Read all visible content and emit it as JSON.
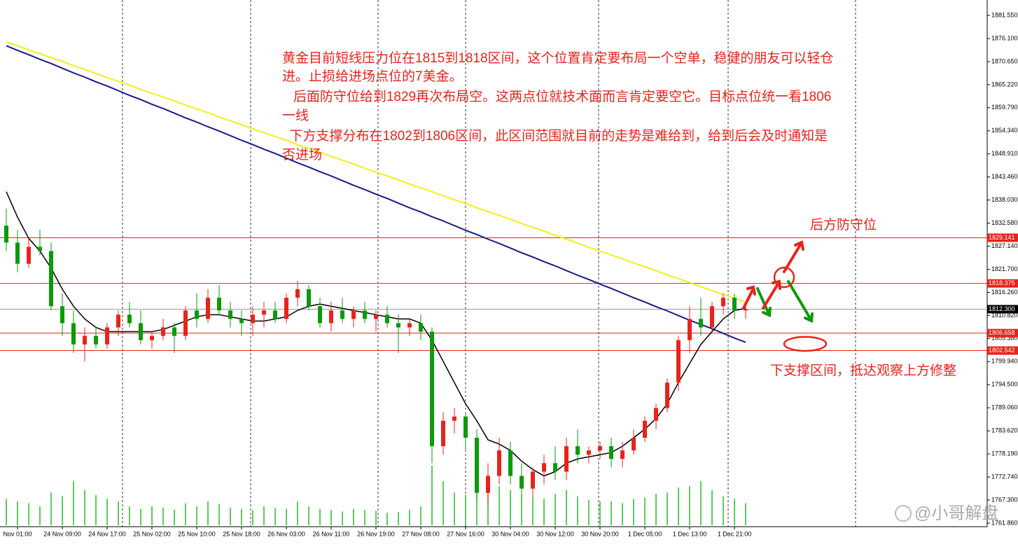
{
  "chart_data": {
    "type": "candlestick",
    "categories": [
      null,
      "Nov 01:00",
      null,
      null,
      null,
      "24 Nov 09:00",
      null,
      null,
      null,
      "24 Nov 17:00",
      null,
      null,
      null,
      "25 Nov 02:00",
      null,
      null,
      null,
      "25 Nov 10:00",
      null,
      null,
      null,
      "25 Nov 18:00",
      null,
      null,
      null,
      "26 Nov 03:00",
      null,
      null,
      null,
      "26 Nov 11:00",
      null,
      null,
      null,
      "26 Nov 19:00",
      null,
      null,
      null,
      "27 Nov 08:00",
      null,
      null,
      null,
      "27 Nov 16:00",
      null,
      null,
      null,
      "30 Nov 04:00",
      null,
      null,
      null,
      "30 Nov 12:00",
      null,
      null,
      null,
      "30 Nov 20:00",
      null,
      null,
      null,
      "1 Dec 05:00",
      null,
      null,
      null,
      "1 Dec 13:00",
      null,
      null,
      null,
      "1 Dec 21:00",
      null
    ],
    "open": [
      1832,
      1828,
      1823,
      1827,
      1826,
      1813,
      1809,
      1804,
      1806,
      1804,
      1808,
      1811,
      1809,
      1805,
      1806,
      1808,
      1806,
      1812,
      1810,
      1815,
      1812,
      1810,
      1809,
      1811,
      1812,
      1810,
      1815,
      1817,
      1813,
      1809,
      1812,
      1810,
      1812,
      1810,
      1811,
      1809,
      1808,
      1809,
      1807,
      1780,
      1786,
      1787,
      1782,
      1769,
      1773,
      1779,
      1773,
      1770,
      1774,
      1776,
      1774,
      1780,
      1778,
      1779,
      1780,
      1777,
      1779,
      1782,
      1786,
      1789,
      1795,
      1805,
      1810,
      1808,
      1813,
      1815,
      1812
    ],
    "high": [
      1836,
      1831,
      1829,
      1831,
      1828,
      1816,
      1812,
      1808,
      1808,
      1809,
      1812,
      1814,
      1812,
      1807,
      1810,
      1809,
      1813,
      1816,
      1817,
      1818,
      1814,
      1812,
      1813,
      1814,
      1814,
      1816,
      1819,
      1818,
      1815,
      1814,
      1815,
      1813,
      1814,
      1812,
      1813,
      1811,
      1810,
      1811,
      1808,
      1788,
      1789,
      1788,
      1784,
      1776,
      1782,
      1781,
      1776,
      1775,
      1778,
      1780,
      1782,
      1784,
      1780,
      1781,
      1782,
      1781,
      1784,
      1787,
      1790,
      1796,
      1806,
      1813,
      1815,
      1814,
      1816,
      1816,
      1814
    ],
    "low": [
      1826,
      1821,
      1822,
      1825,
      1812,
      1806,
      1802,
      1800,
      1803,
      1803,
      1806,
      1808,
      1804,
      1803,
      1805,
      1802,
      1805,
      1808,
      1809,
      1811,
      1808,
      1806,
      1806,
      1808,
      1809,
      1809,
      1813,
      1812,
      1808,
      1807,
      1809,
      1808,
      1809,
      1807,
      1808,
      1802,
      1806,
      1805,
      1776,
      1778,
      1783,
      1779,
      1767,
      1766,
      1771,
      1771,
      1768,
      1768,
      1771,
      1772,
      1772,
      1776,
      1776,
      1777,
      1775,
      1775,
      1778,
      1781,
      1784,
      1788,
      1793,
      1802,
      1806,
      1807,
      1811,
      1810,
      1810
    ],
    "close": [
      1828,
      1823,
      1827,
      1826,
      1813,
      1809,
      1804,
      1806,
      1804,
      1808,
      1811,
      1809,
      1805,
      1806,
      1808,
      1806,
      1812,
      1810,
      1815,
      1812,
      1810,
      1809,
      1811,
      1812,
      1810,
      1815,
      1817,
      1813,
      1809,
      1812,
      1810,
      1812,
      1810,
      1811,
      1809,
      1808,
      1809,
      1807,
      1780,
      1786,
      1787,
      1782,
      1769,
      1773,
      1779,
      1773,
      1770,
      1774,
      1776,
      1774,
      1780,
      1778,
      1779,
      1780,
      1777,
      1779,
      1782,
      1786,
      1789,
      1795,
      1805,
      1810,
      1808,
      1813,
      1815,
      1812,
      1812.3
    ],
    "up_color": "#e8231b",
    "down_color": "#0a9a0a",
    "series": [
      {
        "color": "#f2ef1c",
        "values": [
          1875.3,
          1874.4,
          1873.4,
          1872.5,
          1871.6,
          1870.7,
          1869.7,
          1868.8,
          1867.9,
          1866.9,
          1866.0,
          1865.1,
          1864.1,
          1863.2,
          1862.3,
          1861.4,
          1860.4,
          1859.5,
          1858.6,
          1857.6,
          1856.7,
          1855.8,
          1854.8,
          1853.9,
          1853.0,
          1852.1,
          1851.1,
          1850.2,
          1849.3,
          1848.3,
          1847.4,
          1846.5,
          1845.5,
          1844.6,
          1843.7,
          1842.8,
          1841.8,
          1840.9,
          1840.0,
          1839.0,
          1838.1,
          1837.2,
          1836.2,
          1835.3,
          1834.4,
          1833.5,
          1832.5,
          1831.6,
          1830.7,
          1829.7,
          1828.8,
          1827.9,
          1826.9,
          1826.0,
          1825.1,
          1824.2,
          1823.2,
          1822.3,
          1821.4,
          1820.4,
          1819.5,
          1818.6,
          1817.6,
          1816.7,
          1815.8,
          1814.9,
          1813.9
        ]
      },
      {
        "color": "#1a1a8c",
        "values": [
          1874.4,
          1873.3,
          1872.3,
          1871.2,
          1870.2,
          1869.1,
          1868.0,
          1867.0,
          1865.9,
          1864.9,
          1863.8,
          1862.7,
          1861.7,
          1860.6,
          1859.6,
          1858.5,
          1857.4,
          1856.4,
          1855.3,
          1854.3,
          1853.2,
          1852.1,
          1851.1,
          1850.0,
          1849.0,
          1847.9,
          1846.8,
          1845.8,
          1844.7,
          1843.7,
          1842.6,
          1841.5,
          1840.5,
          1839.4,
          1838.4,
          1837.3,
          1836.2,
          1835.2,
          1834.1,
          1833.1,
          1832.0,
          1830.9,
          1829.9,
          1828.8,
          1827.8,
          1826.7,
          1825.6,
          1824.6,
          1823.5,
          1822.5,
          1821.4,
          1820.3,
          1819.3,
          1818.2,
          1817.2,
          1816.1,
          1815.0,
          1814.0,
          1812.9,
          1811.9,
          1810.8,
          1809.7,
          1808.7,
          1807.7,
          1806.6,
          1805.5,
          1804.5
        ]
      },
      {
        "color": "#000000",
        "values": [
          1840,
          1834,
          1829,
          1826,
          1822,
          1817,
          1813,
          1810,
          1808,
          1807,
          1807,
          1807,
          1807,
          1807,
          1807.5,
          1808.5,
          1809.5,
          1810.5,
          1811,
          1811,
          1810.5,
          1810,
          1809.5,
          1809.5,
          1810,
          1810.5,
          1812,
          1813,
          1813.5,
          1813,
          1812.5,
          1812,
          1811.5,
          1811,
          1810.5,
          1810,
          1810,
          1809,
          1805,
          1800,
          1795,
          1790,
          1786,
          1781.5,
          1780.5,
          1779,
          1776.5,
          1774.5,
          1773,
          1774,
          1776,
          1777,
          1777.5,
          1778,
          1778.5,
          1780,
          1782,
          1784,
          1786.5,
          1790,
          1795,
          1799.5,
          1804,
          1807,
          1810,
          1812,
          1812.5
        ]
      }
    ],
    "volume": [
      420,
      380,
      350,
      300,
      520,
      460,
      700,
      560,
      480,
      420,
      380,
      300,
      260,
      300,
      280,
      250,
      350,
      300,
      380,
      340,
      280,
      260,
      240,
      300,
      280,
      260,
      380,
      300,
      260,
      240,
      220,
      260,
      240,
      230,
      200,
      210,
      250,
      300,
      950,
      700,
      520,
      480,
      640,
      800,
      620,
      560,
      480,
      450,
      420,
      500,
      560,
      460,
      400,
      380,
      380,
      350,
      420,
      440,
      500,
      520,
      600,
      620,
      700,
      560,
      460,
      420,
      350
    ],
    "volume_color": "#22c022",
    "volume_lim": [
      0,
      1000
    ],
    "ylim": [
      1761.03,
      1885.18
    ],
    "yticks": [
      {
        "value": 1881.55,
        "label": "1881.550"
      },
      {
        "value": 1876.1,
        "label": "1876.100"
      },
      {
        "value": 1870.65,
        "label": "1870.650"
      },
      {
        "value": 1865.22,
        "label": "1865.220"
      },
      {
        "value": 1859.79,
        "label": "1859.790"
      },
      {
        "value": 1854.34,
        "label": "1854.340"
      },
      {
        "value": 1848.91,
        "label": "1848.910"
      },
      {
        "value": 1843.46,
        "label": "1843.460"
      },
      {
        "value": 1838.03,
        "label": "1838.030"
      },
      {
        "value": 1832.58,
        "label": "1832.580"
      },
      {
        "value": 1827.14,
        "label": "1827.140"
      },
      {
        "value": 1821.7,
        "label": "1821.700"
      },
      {
        "value": 1816.26,
        "label": "1816.260"
      },
      {
        "value": 1810.82,
        "label": "1810.820"
      },
      {
        "value": 1805.38,
        "label": "1805.380"
      },
      {
        "value": 1799.94,
        "label": "1799.940"
      },
      {
        "value": 1794.5,
        "label": "1794.500"
      },
      {
        "value": 1789.06,
        "label": "1789.060"
      },
      {
        "value": 1783.62,
        "label": "1783.620"
      },
      {
        "value": 1778.19,
        "label": "1778.190"
      },
      {
        "value": 1772.74,
        "label": "1772.740"
      },
      {
        "value": 1767.3,
        "label": "1767.300"
      },
      {
        "value": 1761.86,
        "label": "1761.860"
      }
    ],
    "levels": [
      1829.141,
      1818.375,
      {
        "value": 1812.3,
        "label": "1812.300"
      },
      1806.658,
      1802.542
    ],
    "level_colors": [
      "#e8231b",
      "#e8231b",
      "#9a9a9a",
      "#e8231b",
      "#e8231b"
    ],
    "level_label_bg": [
      "#e8231b",
      "#e8231b",
      "#000000",
      "#e8231b",
      "#e8231b"
    ],
    "annotation": [
      "黄金目前短线压力位在1815到1818区间，这个位置肯定要布局一个空单，稳健的朋友可以轻仓",
      "进。止损给进场点位的7美金。",
      "   后面防守位给到1829再次布局空。这两点位就技术面而言肯定要空它。目标点位统一看1806",
      "一线",
      "  下方支撑分布在1802到1806区间，此区间范围就目前的走势是难给到，给到后会及时通知是",
      "否进场"
    ],
    "label_defense": "后方防守位",
    "label_support": "下支撑区间，抵达观察上方修整",
    "watermark": "@小哥解盘"
  }
}
